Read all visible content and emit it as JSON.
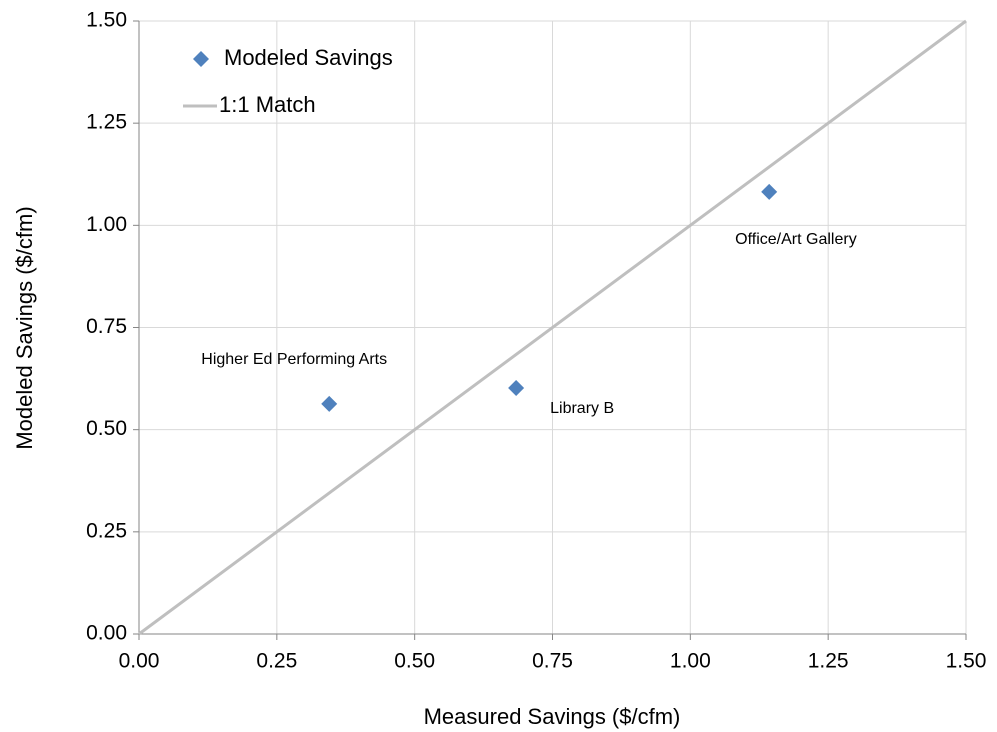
{
  "chart_data": {
    "type": "scatter",
    "xlabel": "Measured Savings ($/cfm)",
    "ylabel": "Modeled Savings ($/cfm)",
    "xlim": [
      0,
      1.5
    ],
    "ylim": [
      0,
      1.5
    ],
    "xticks": [
      {
        "value": 0,
        "label": "0.00"
      },
      {
        "value": 0.25,
        "label": "0.25"
      },
      {
        "value": 0.5,
        "label": "0.50"
      },
      {
        "value": 0.75,
        "label": "0.75"
      },
      {
        "value": 1,
        "label": "1.00"
      },
      {
        "value": 1.25,
        "label": "1.25"
      },
      {
        "value": 1.5,
        "label": "1.50"
      }
    ],
    "yticks": [
      {
        "value": 0,
        "label": "0.00"
      },
      {
        "value": 0.25,
        "label": "0.25"
      },
      {
        "value": 0.5,
        "label": "0.50"
      },
      {
        "value": 0.75,
        "label": "0.75"
      },
      {
        "value": 1,
        "label": "1.00"
      },
      {
        "value": 1.25,
        "label": "1.25"
      },
      {
        "value": 1.5,
        "label": "1.50"
      }
    ],
    "grid": true,
    "legend": "upper left",
    "series": [
      {
        "name": "Modeled Savings",
        "color": "#4f81bd",
        "marker": "diamond",
        "x": [
          0.345,
          0.684,
          1.143
        ],
        "values": [
          0.563,
          0.602,
          1.082
        ],
        "labels": [
          "Higher Ed Performing Arts",
          "Library B",
          "Office/Art Gallery"
        ]
      },
      {
        "name": "1:1 Match",
        "color": "#bfbfbf",
        "marker": "line",
        "x": [
          0,
          1.5
        ],
        "values": [
          0,
          1.5
        ]
      }
    ]
  }
}
